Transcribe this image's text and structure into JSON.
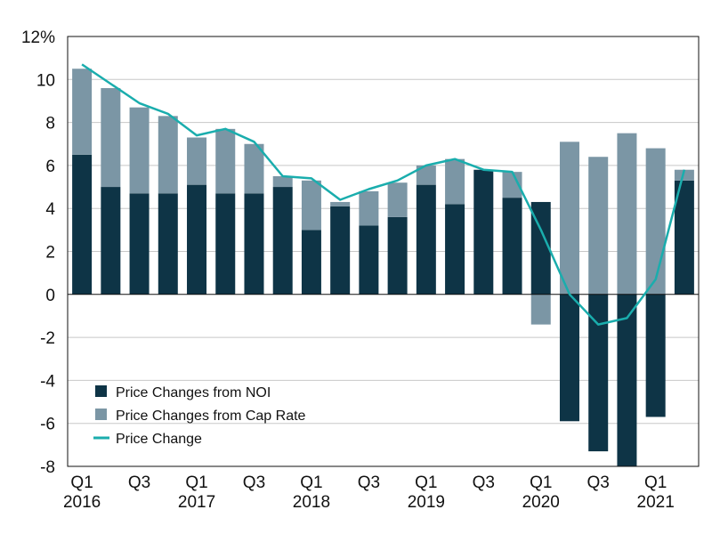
{
  "chart_data": {
    "type": "bar",
    "stacked": true,
    "title": "",
    "xlabel": "",
    "ylabel": "",
    "ylim": [
      -8,
      12
    ],
    "y_ticks": [
      "12%",
      "10",
      "8",
      "6",
      "4",
      "2",
      "0",
      "-2",
      "-4",
      "-6",
      "-8"
    ],
    "y_tick_values": [
      12,
      10,
      8,
      6,
      4,
      2,
      0,
      -2,
      -4,
      -6,
      -8
    ],
    "grid": true,
    "categories": [
      "Q1 2016",
      "Q2 2016",
      "Q3 2016",
      "Q4 2016",
      "Q1 2017",
      "Q2 2017",
      "Q3 2017",
      "Q4 2017",
      "Q1 2018",
      "Q2 2018",
      "Q3 2018",
      "Q4 2018",
      "Q1 2019",
      "Q2 2019",
      "Q3 2019",
      "Q4 2019",
      "Q1 2020",
      "Q2 2020",
      "Q3 2020",
      "Q4 2020",
      "Q1 2021",
      "Q2 2021"
    ],
    "x_tick_labels": [
      {
        "index": 0,
        "line1": "Q1",
        "line2": "2016"
      },
      {
        "index": 2,
        "line1": "Q3",
        "line2": ""
      },
      {
        "index": 4,
        "line1": "Q1",
        "line2": "2017"
      },
      {
        "index": 6,
        "line1": "Q3",
        "line2": ""
      },
      {
        "index": 8,
        "line1": "Q1",
        "line2": "2018"
      },
      {
        "index": 10,
        "line1": "Q3",
        "line2": ""
      },
      {
        "index": 12,
        "line1": "Q1",
        "line2": "2019"
      },
      {
        "index": 14,
        "line1": "Q3",
        "line2": ""
      },
      {
        "index": 16,
        "line1": "Q1",
        "line2": "2020"
      },
      {
        "index": 18,
        "line1": "Q3",
        "line2": ""
      },
      {
        "index": 20,
        "line1": "Q1",
        "line2": "2021"
      }
    ],
    "series": [
      {
        "name": "Price Changes from NOI",
        "kind": "bar",
        "color": "#0e3446",
        "values": [
          6.5,
          5.0,
          4.7,
          4.7,
          5.1,
          4.7,
          4.7,
          5.0,
          3.0,
          4.1,
          3.2,
          3.6,
          5.1,
          4.2,
          5.8,
          4.5,
          4.3,
          -5.9,
          -7.3,
          -8.0,
          -5.7,
          5.3
        ]
      },
      {
        "name": "Price Changes from Cap Rate",
        "kind": "bar",
        "color": "#7b96a5",
        "values": [
          4.0,
          4.6,
          4.0,
          3.6,
          2.2,
          3.0,
          2.3,
          0.5,
          2.3,
          0.2,
          1.6,
          1.6,
          0.9,
          2.1,
          0.0,
          1.2,
          -1.4,
          7.1,
          6.4,
          7.5,
          6.8,
          0.5
        ]
      },
      {
        "name": "Price Change",
        "kind": "line",
        "color": "#1aadad",
        "values": [
          10.7,
          9.8,
          8.9,
          8.4,
          7.4,
          7.7,
          7.1,
          5.5,
          5.4,
          4.4,
          4.9,
          5.3,
          6.0,
          6.3,
          5.8,
          5.7,
          3.0,
          0.0,
          -1.4,
          -1.1,
          0.7,
          5.8
        ]
      }
    ],
    "legend": {
      "position": "bottom-left",
      "entries": [
        "Price Changes from NOI",
        "Price Changes from Cap Rate",
        "Price Change"
      ]
    }
  }
}
